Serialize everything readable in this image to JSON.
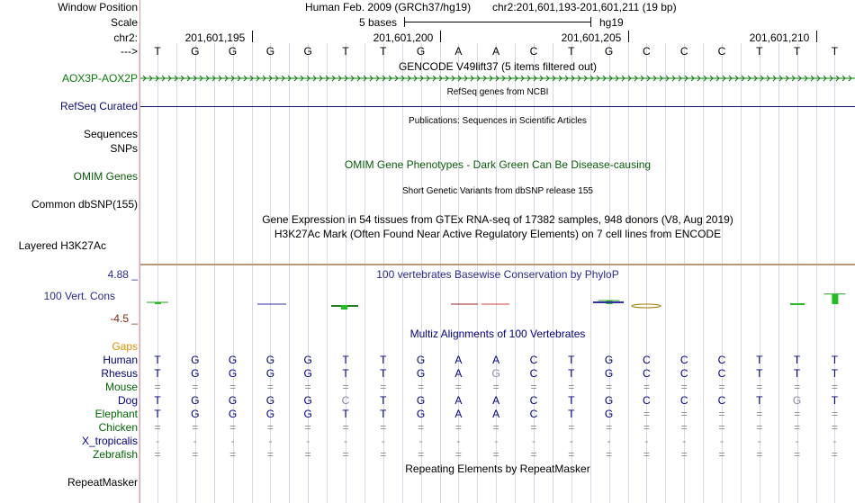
{
  "header": {
    "window_position_label": "Window Position",
    "scale_label": "Scale",
    "chrom_label": "chr2:",
    "strand_label": "--->",
    "assembly": "Human Feb. 2009 (GRCh37/hg19)",
    "position": "chr2:201,601,193-201,601,211 (19 bp)",
    "scale_text": "5 bases",
    "db": "hg19",
    "coords": [
      {
        "text": "201,601,195",
        "base_index": 2
      },
      {
        "text": "201,601,200",
        "base_index": 7
      },
      {
        "text": "201,601,205",
        "base_index": 12
      },
      {
        "text": "201,601,210",
        "base_index": 17
      }
    ]
  },
  "bases": [
    "T",
    "G",
    "G",
    "G",
    "G",
    "T",
    "T",
    "G",
    "A",
    "A",
    "C",
    "T",
    "G",
    "C",
    "C",
    "C",
    "T",
    "T",
    "T"
  ],
  "tracks": {
    "gencode_title": "GENCODE V49lift37 (5 items filtered out)",
    "gencode_label": "AOX3P-AOX2P",
    "refseq_title": "RefSeq genes from NCBI",
    "refseq_label": "RefSeq Curated",
    "pubs_title": "Publications: Sequences in Scientific Articles",
    "sequences_label": "Sequences",
    "snps_label": "SNPs",
    "omim_title": "OMIM Gene Phenotypes - Dark Green Can Be Disease-causing",
    "omim_label": "OMIM Genes",
    "dbsnp_title": "Short Genetic Variants from dbSNP release 155",
    "dbsnp_label": "Common dbSNP(155)",
    "gtex_title": "Gene Expression in 54 tissues from GTEx RNA-seq of 17382 samples, 948 donors (V8, Aug 2019)",
    "h3k27_title": "H3K27Ac Mark (Often Found Near Active Regulatory Elements) on 7 cell lines from ENCODE",
    "h3k27_label": "Layered H3K27Ac",
    "phylop_title": "100 vertebrates Basewise Conservation by PhyloP",
    "phylop_label": "100 Vert. Cons",
    "phylop_max": "4.88 _",
    "phylop_min": "-4.5 _",
    "multiz_title": "Multiz Alignments of 100 Vertebrates",
    "gaps_label": "Gaps",
    "repeat_title": "Repeating Elements by RepeatMasker",
    "repeat_label": "RepeatMasker"
  },
  "alignments": [
    {
      "species": "Human",
      "color": "#000080",
      "seq": [
        "T",
        "G",
        "G",
        "G",
        "G",
        "T",
        "T",
        "G",
        "A",
        "A",
        "C",
        "T",
        "G",
        "C",
        "C",
        "C",
        "T",
        "T",
        "T"
      ]
    },
    {
      "species": "Rhesus",
      "color": "#000080",
      "seq": [
        "T",
        "G",
        "G",
        "G",
        "G",
        "T",
        "T",
        "G",
        "A",
        "G",
        "C",
        "T",
        "G",
        "C",
        "C",
        "C",
        "T",
        "T",
        "T"
      ]
    },
    {
      "species": "Mouse",
      "color": "#006400",
      "seq": [
        "=",
        "=",
        "=",
        "=",
        "=",
        "=",
        "=",
        "=",
        "=",
        "=",
        "=",
        "=",
        "=",
        "=",
        "=",
        "=",
        "=",
        "=",
        "="
      ]
    },
    {
      "species": "Dog",
      "color": "#000080",
      "seq": [
        "T",
        "G",
        "G",
        "G",
        "G",
        "C",
        "T",
        "G",
        "A",
        "A",
        "C",
        "T",
        "G",
        "C",
        "C",
        "C",
        "T",
        "G",
        "T"
      ]
    },
    {
      "species": "Elephant",
      "color": "#006400",
      "seq": [
        "T",
        "G",
        "G",
        "G",
        "G",
        "T",
        "T",
        "G",
        "A",
        "A",
        "C",
        "T",
        "G",
        "=",
        "=",
        "=",
        "=",
        "=",
        "="
      ]
    },
    {
      "species": "Chicken",
      "color": "#006400",
      "seq": [
        "=",
        "=",
        "=",
        "=",
        "=",
        "=",
        "=",
        "=",
        "=",
        "=",
        "=",
        "=",
        "=",
        "=",
        "=",
        "=",
        "=",
        "=",
        "="
      ]
    },
    {
      "species": "X_tropicalis",
      "color": "#000080",
      "seq": [
        "-",
        "-",
        "-",
        "-",
        "-",
        "-",
        "-",
        "-",
        "-",
        "-",
        "-",
        "-",
        "-",
        "-",
        "-",
        "-",
        "-",
        "-",
        "-"
      ]
    },
    {
      "species": "Zebrafish",
      "color": "#006400",
      "seq": [
        "=",
        "=",
        "=",
        "=",
        "=",
        "=",
        "=",
        "=",
        "=",
        "=",
        "=",
        "=",
        "=",
        "=",
        "=",
        "=",
        "=",
        "=",
        "="
      ]
    }
  ],
  "phylop_scores": [
    0.2,
    0,
    0,
    0,
    0,
    0,
    0,
    0,
    0,
    0,
    0,
    0,
    1.0,
    0,
    0,
    0,
    0,
    0,
    2.8
  ],
  "colors": {
    "gencode": "#0a7a0a",
    "refseq": "#0c0c78",
    "omim": "#0a5a0a",
    "phylop_label": "#2a2a90",
    "phylop_min": "#7a2a10",
    "gaps": "#e09000"
  }
}
